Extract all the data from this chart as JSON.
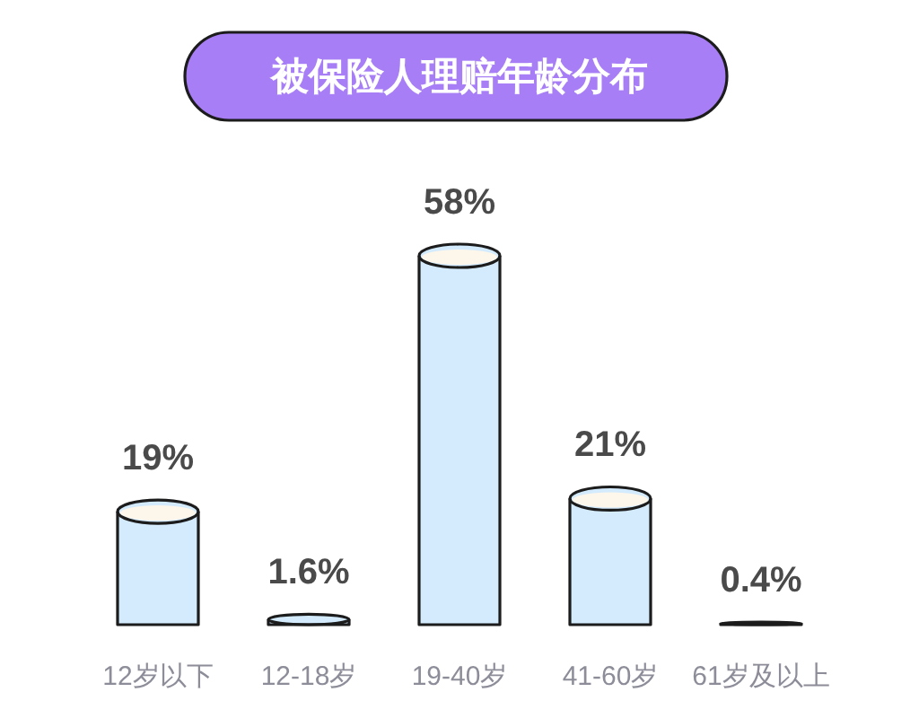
{
  "chart_data": {
    "type": "bar",
    "title": "被保险人理赔年龄分布",
    "categories": [
      "12岁以下",
      "12-18岁",
      "19-40岁",
      "41-60岁",
      "61岁及以上"
    ],
    "values": [
      19,
      1.6,
      58,
      21,
      0.4
    ],
    "value_labels": [
      "19%",
      "1.6%",
      "58%",
      "21%",
      "0.4%"
    ],
    "color": "#d3ebfc"
  }
}
